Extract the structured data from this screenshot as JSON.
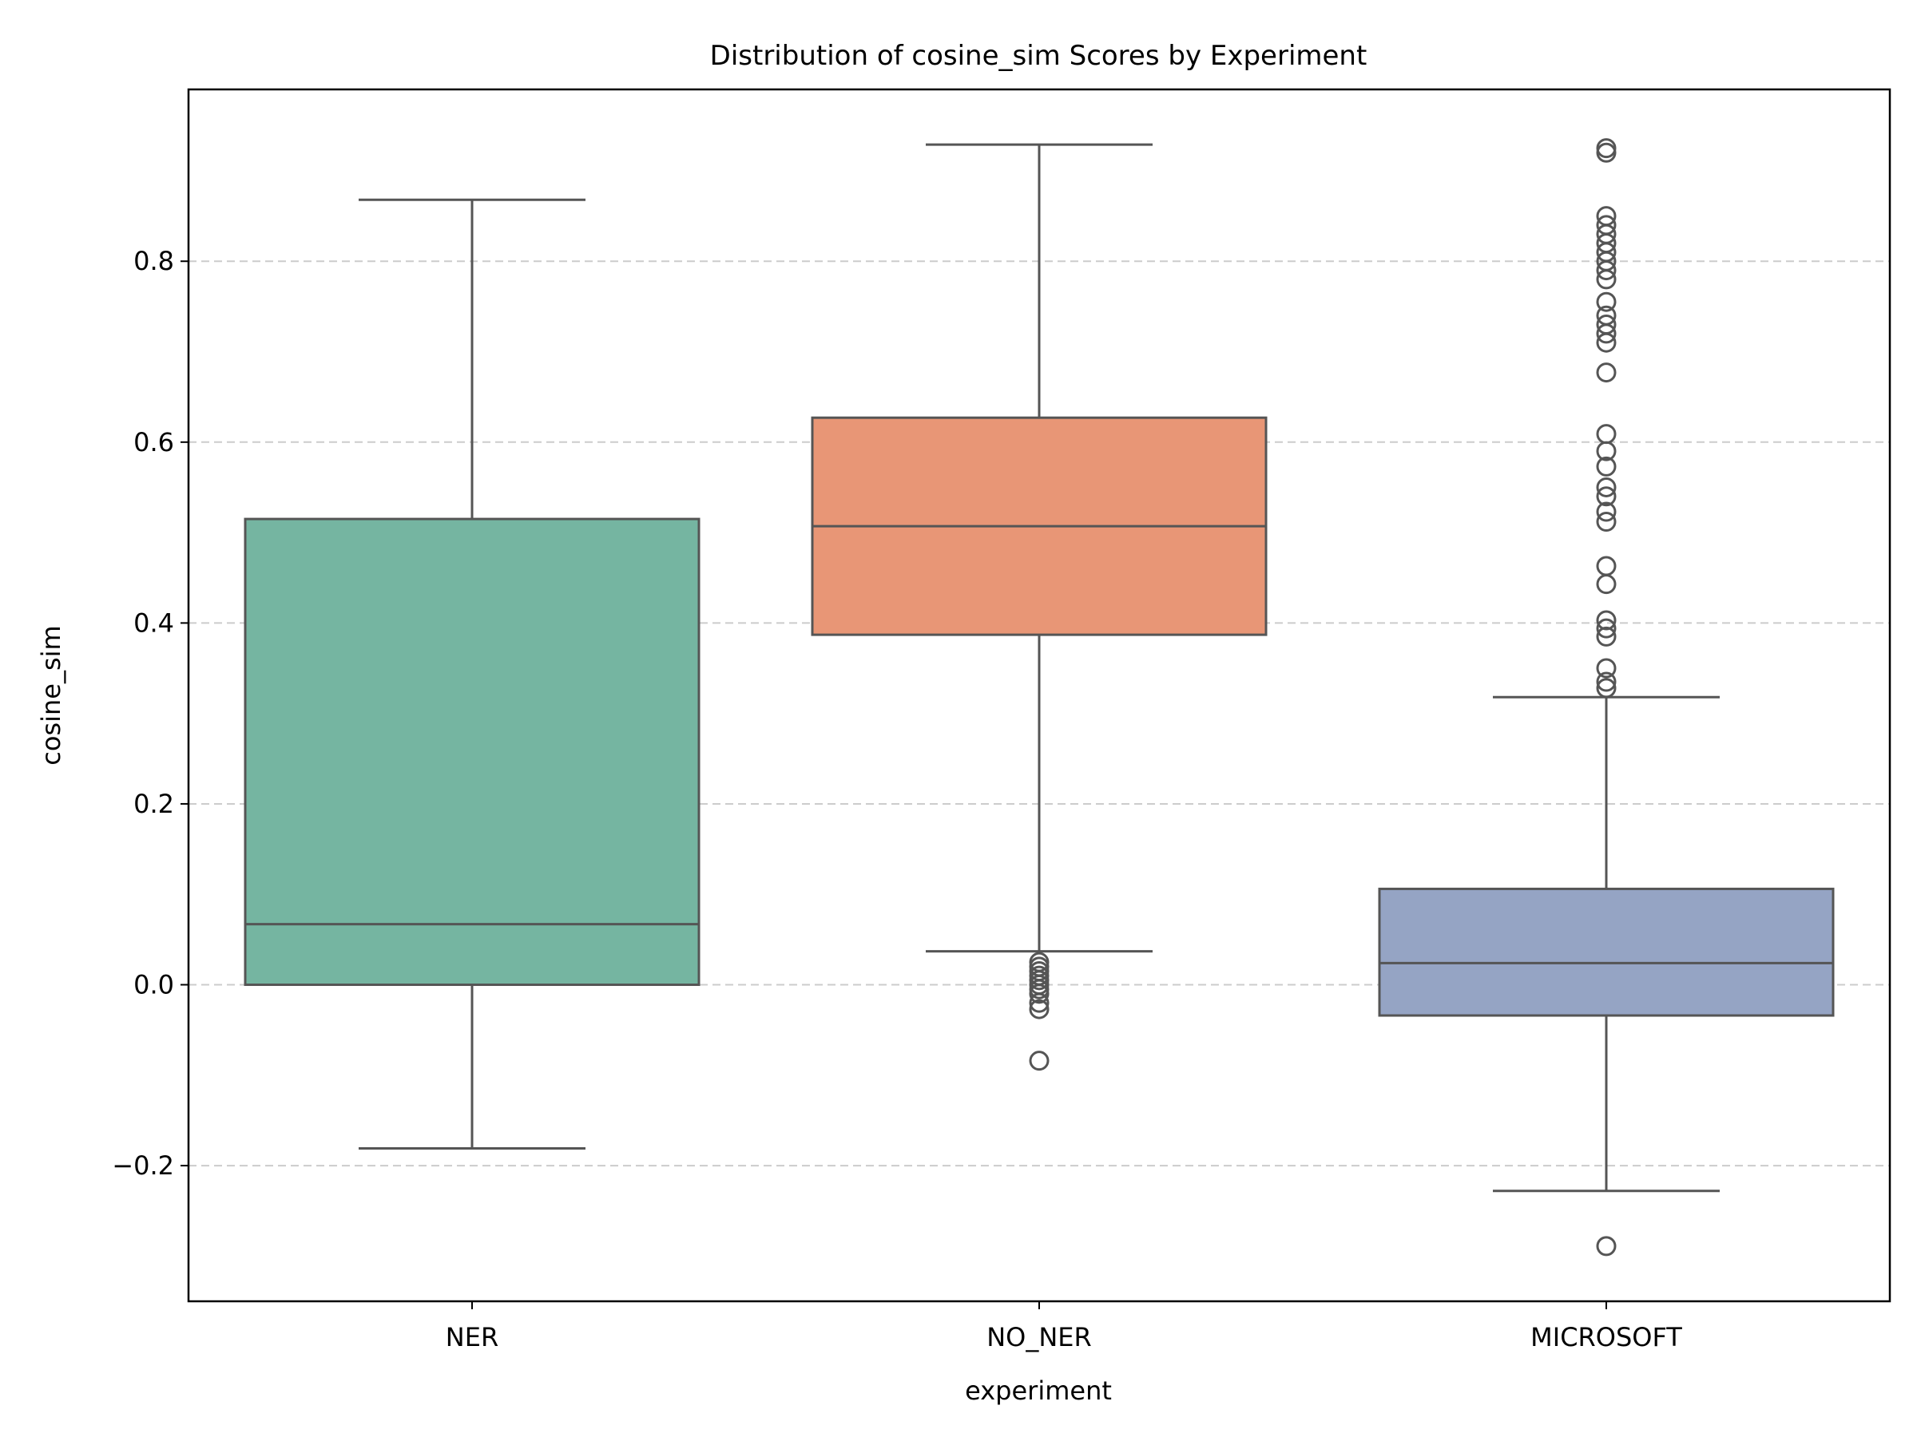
{
  "chart_data": {
    "type": "box",
    "title": "Distribution of cosine_sim Scores by Experiment",
    "xlabel": "experiment",
    "ylabel": "cosine_sim",
    "ylim": [
      -0.35,
      0.99
    ],
    "yticks": [
      -0.2,
      0.0,
      0.2,
      0.4,
      0.6,
      0.8
    ],
    "ytick_labels": [
      "−0.2",
      "0.0",
      "0.2",
      "0.4",
      "0.6",
      "0.8"
    ],
    "grid": {
      "axis": "y",
      "style": "dashed"
    },
    "categories": [
      "NER",
      "NO_NER",
      "MICROSOFT"
    ],
    "boxes": [
      {
        "category": "NER",
        "color": "#75b5a1",
        "whisker_low": -0.181,
        "q1": 0.0,
        "median": 0.067,
        "q3": 0.515,
        "whisker_high": 0.868,
        "outliers": []
      },
      {
        "category": "NO_NER",
        "color": "#e89676",
        "whisker_low": 0.037,
        "q1": 0.387,
        "median": 0.507,
        "q3": 0.627,
        "whisker_high": 0.929,
        "outliers": [
          0.025,
          0.02,
          0.015,
          0.01,
          0.005,
          0.0,
          -0.005,
          -0.01,
          -0.02,
          -0.027,
          -0.084
        ]
      },
      {
        "category": "MICROSOFT",
        "color": "#95a4c4",
        "whisker_low": -0.228,
        "q1": -0.034,
        "median": 0.024,
        "q3": 0.106,
        "whisker_high": 0.318,
        "outliers": [
          0.925,
          0.92,
          0.85,
          0.84,
          0.83,
          0.82,
          0.81,
          0.8,
          0.79,
          0.78,
          0.755,
          0.74,
          0.73,
          0.72,
          0.71,
          0.677,
          0.609,
          0.59,
          0.573,
          0.55,
          0.54,
          0.523,
          0.512,
          0.463,
          0.443,
          0.403,
          0.394,
          0.385,
          0.35,
          0.335,
          0.328,
          -0.289
        ]
      }
    ],
    "colors": {
      "box_edge": "#555555",
      "grid": "#cccccc",
      "frame": "#000000"
    }
  }
}
